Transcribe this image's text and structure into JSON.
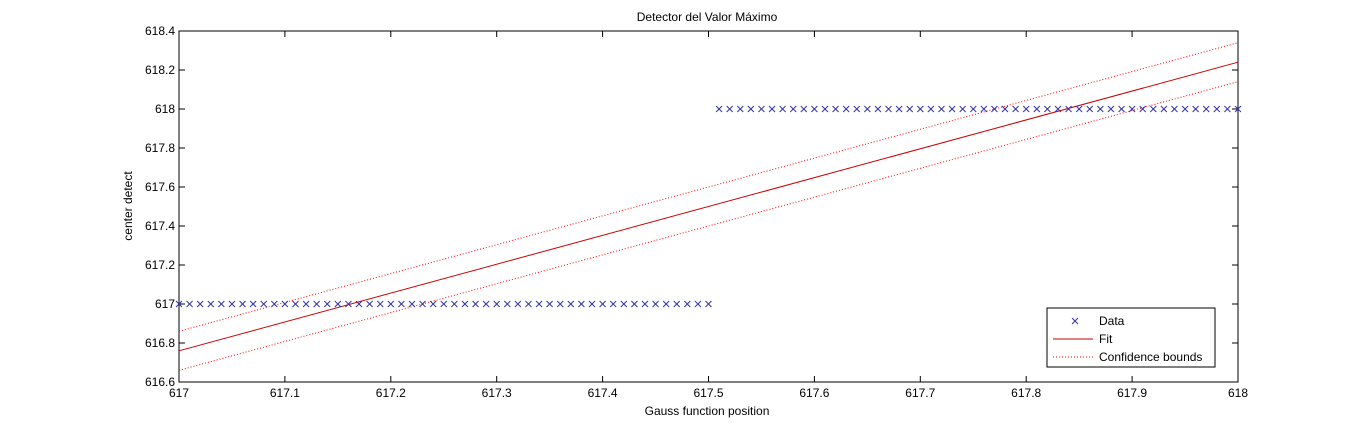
{
  "chart_data": {
    "type": "scatter",
    "title": "Detector del Valor Máximo",
    "xlabel": "Gauss function position",
    "ylabel": "center detect",
    "xlim": [
      617,
      618
    ],
    "ylim": [
      616.6,
      618.4
    ],
    "x_ticks": [
      "617",
      "617.1",
      "617.2",
      "617.3",
      "617.4",
      "617.5",
      "617.6",
      "617.7",
      "617.8",
      "617.9",
      "618"
    ],
    "y_ticks": [
      "616.6",
      "616.8",
      "617",
      "617.2",
      "617.4",
      "617.6",
      "617.8",
      "618",
      "618.2",
      "618.4"
    ],
    "grid": false,
    "legend_position": "bottom-right",
    "series": [
      {
        "name": "Data",
        "marker": "x",
        "color": "#3333aa",
        "segments": [
          {
            "x_start": 617.0,
            "x_end": 617.5,
            "step": 0.01,
            "y": 617
          },
          {
            "x_start": 617.51,
            "x_end": 618.0,
            "step": 0.01,
            "y": 618
          }
        ]
      },
      {
        "name": "Fit",
        "style": "solid",
        "color": "#cc0000",
        "x": [
          617.0,
          618.0
        ],
        "y": [
          616.76,
          618.24
        ]
      },
      {
        "name": "Confidence bounds",
        "style": "dotted",
        "color": "#ff0000",
        "upper": {
          "x": [
            617.0,
            618.0
          ],
          "y": [
            616.86,
            618.34
          ]
        },
        "lower": {
          "x": [
            617.0,
            618.0
          ],
          "y": [
            616.66,
            618.14
          ]
        }
      }
    ]
  }
}
